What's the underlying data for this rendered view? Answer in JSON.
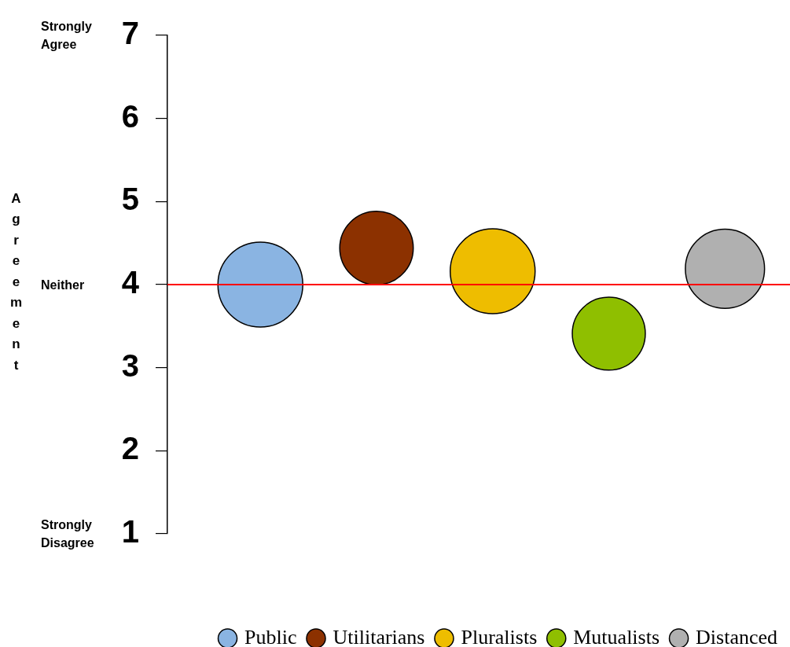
{
  "chart_data": {
    "type": "bubble",
    "categories": [
      null,
      null,
      null,
      null,
      null
    ],
    "series": [
      {
        "name": "Public",
        "color": "#8ab4e2",
        "values": [
          4.0,
          null,
          null,
          null,
          null
        ],
        "sizes": [
          1.0,
          null,
          null,
          null,
          null
        ]
      },
      {
        "name": "Utilitarians",
        "color": "#8c3100",
        "values": [
          null,
          4.44,
          null,
          null,
          null
        ],
        "sizes": [
          null,
          0.75,
          null,
          null,
          null
        ]
      },
      {
        "name": "Pluralists",
        "color": "#eebd00",
        "values": [
          null,
          null,
          4.16,
          null,
          null
        ],
        "sizes": [
          null,
          null,
          1.0,
          null,
          null
        ]
      },
      {
        "name": "Mutualists",
        "color": "#8fbf00",
        "values": [
          null,
          null,
          null,
          3.41,
          null
        ],
        "sizes": [
          null,
          null,
          null,
          0.74,
          null
        ]
      },
      {
        "name": "Distanced",
        "color": "#b0b0b0",
        "values": [
          null,
          null,
          null,
          null,
          4.19
        ],
        "sizes": [
          null,
          null,
          null,
          null,
          0.87
        ]
      }
    ],
    "ylim": [
      1,
      7
    ],
    "yticks": [
      1,
      2,
      3,
      4,
      5,
      6,
      7
    ],
    "grid": false,
    "legend": "bottom right",
    "tick_labels": "y",
    "ref_lines": [
      {
        "axis": "y",
        "value": 4,
        "color": "#ff0000"
      }
    ],
    "annotations": [
      "Agreement",
      "Strongly Agree",
      "Neither",
      "Strongly Disagree"
    ]
  }
}
